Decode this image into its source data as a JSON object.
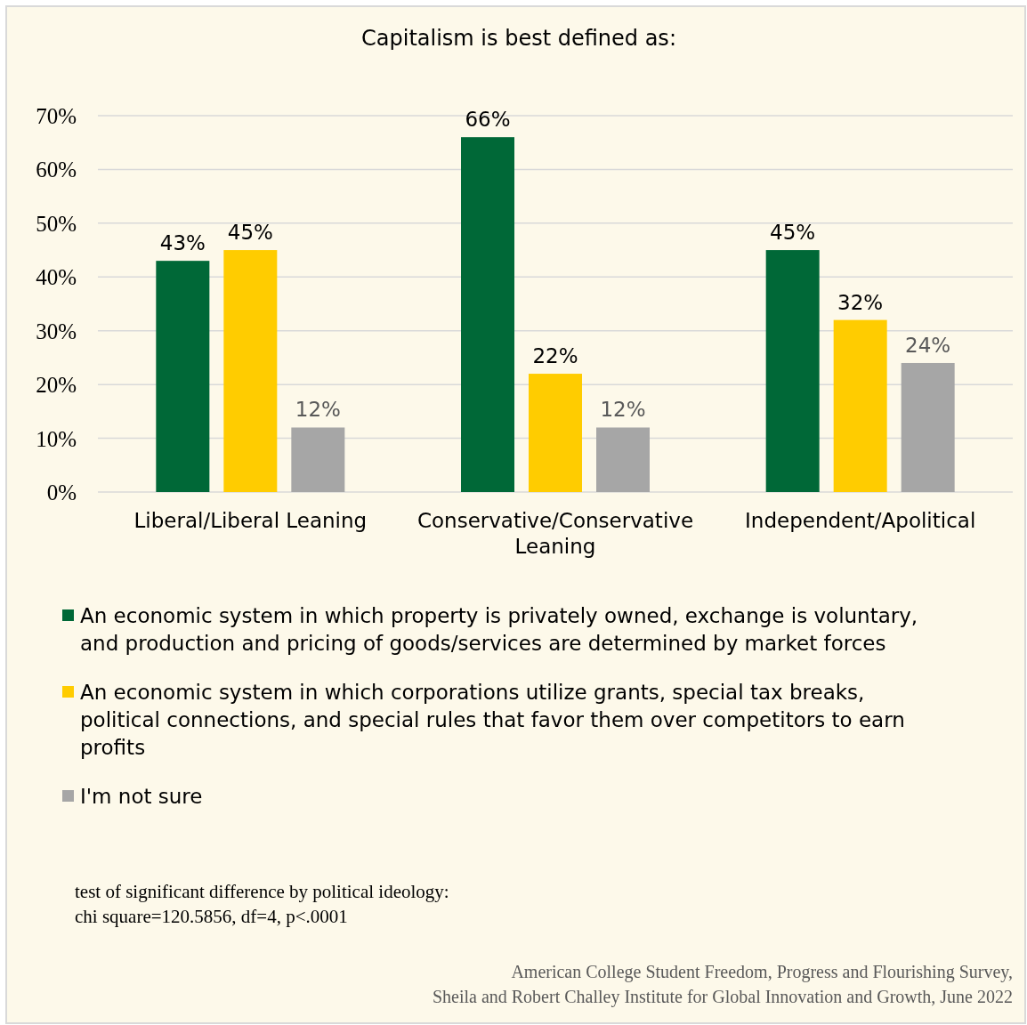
{
  "chart_data": {
    "type": "bar",
    "title": "Capitalism is best defined as:",
    "categories": [
      "Liberal/Liberal Leaning",
      "Conservative/Conservative Leaning",
      "Independent/Apolitical"
    ],
    "series": [
      {
        "name": "An economic system in which property is privately owned, exchange is voluntary, and production and pricing of goods/services are determined by market forces",
        "color": "#006837",
        "values": [
          43,
          66,
          45
        ],
        "value_labels": [
          "43%",
          "66%",
          "45%"
        ]
      },
      {
        "name": "An economic system in which corporations utilize grants, special tax breaks, political connections, and special rules that favor them over competitors to earn profits",
        "color": "#ffcc00",
        "values": [
          45,
          22,
          32
        ],
        "value_labels": [
          "45%",
          "22%",
          "32%"
        ]
      },
      {
        "name": "I'm not sure",
        "color": "#a6a6a6",
        "values": [
          12,
          12,
          24
        ],
        "value_labels": [
          "12%",
          "12%",
          "24%"
        ]
      }
    ],
    "ylim": [
      0,
      70
    ],
    "yticks": [
      {
        "value": 0,
        "label": "0%"
      },
      {
        "value": 10,
        "label": "10%"
      },
      {
        "value": 20,
        "label": "20%"
      },
      {
        "value": 30,
        "label": "30%"
      },
      {
        "value": 40,
        "label": "40%"
      },
      {
        "value": 50,
        "label": "50%"
      },
      {
        "value": 60,
        "label": "60%"
      },
      {
        "value": 70,
        "label": "70%"
      }
    ],
    "grid": "y",
    "legend": "bottom",
    "annotations": [
      "test of significant difference by political ideology:\nchi square=120.5856, df=4, p<.0001",
      "American College Student Freedom, Progress and Flourishing Survey,\nSheila and Robert Challey Institute for Global Innovation and Growth, June 2022"
    ]
  }
}
